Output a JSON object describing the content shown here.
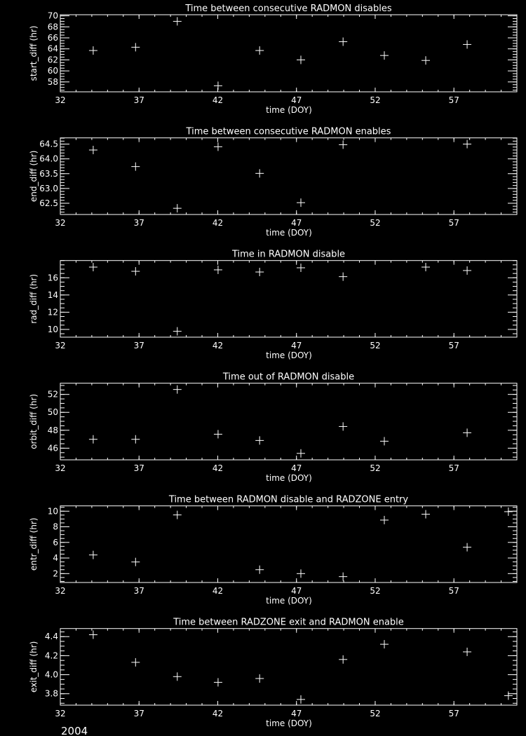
{
  "footer": {
    "year": "2004"
  },
  "colors": {
    "background": "#000000",
    "foreground": "#ffffff"
  },
  "chart_data": [
    {
      "type": "scatter",
      "marker": "plus",
      "title": "Time between consecutive RADMON disables",
      "xlabel": "time (DOY)",
      "ylabel": "start_diff (hr)",
      "xlim": [
        32,
        61
      ],
      "ylim": [
        56.2,
        70.2
      ],
      "xticks": [
        "32",
        "37",
        "42",
        "47",
        "52",
        "57"
      ],
      "x_minor": 1,
      "yticks": [
        "58",
        "60",
        "62",
        "64",
        "66",
        "68",
        "70"
      ],
      "y_minor": 0.5,
      "x": [
        34.09,
        36.78,
        39.43,
        42.02,
        44.66,
        47.28,
        49.96,
        52.58,
        55.21,
        57.84
      ],
      "y": [
        63.7,
        64.3,
        69.0,
        57.3,
        63.7,
        62.0,
        65.3,
        62.8,
        61.9,
        64.8
      ]
    },
    {
      "type": "scatter",
      "marker": "plus",
      "title": "Time between consecutive RADMON enables",
      "xlabel": "time (DOY)",
      "ylabel": "end_diff (hr)",
      "xlim": [
        32,
        61
      ],
      "ylim": [
        62.12,
        64.71
      ],
      "xticks": [
        "32",
        "37",
        "42",
        "47",
        "52",
        "57"
      ],
      "x_minor": 1,
      "yticks": [
        "62.5",
        "63.0",
        "63.5",
        "64.0",
        "64.5"
      ],
      "y_minor": 0.1,
      "x": [
        34.09,
        36.78,
        39.43,
        42.02,
        44.66,
        47.28,
        49.96,
        57.84
      ],
      "y": [
        64.3,
        63.74,
        62.33,
        64.41,
        63.51,
        62.52,
        64.48,
        64.5
      ]
    },
    {
      "type": "scatter",
      "marker": "plus",
      "title": "Time in RADMON disable",
      "xlabel": "time (DOY)",
      "ylabel": "rad_diff (hr)",
      "xlim": [
        32,
        61
      ],
      "ylim": [
        9.1,
        18.0
      ],
      "xticks": [
        "32",
        "37",
        "42",
        "47",
        "52",
        "57"
      ],
      "x_minor": 1,
      "yticks": [
        "10",
        "12",
        "14",
        "16"
      ],
      "y_minor": 0.5,
      "x": [
        34.09,
        36.78,
        39.43,
        42.02,
        44.66,
        47.28,
        49.96,
        55.21,
        57.84
      ],
      "y": [
        17.24,
        16.75,
        9.78,
        16.92,
        16.67,
        17.16,
        16.13,
        17.24,
        16.84
      ]
    },
    {
      "type": "scatter",
      "marker": "plus",
      "title": "Time out of RADMON disable",
      "xlabel": "time (DOY)",
      "ylabel": "orbit_diff (hr)",
      "xlim": [
        32,
        61
      ],
      "ylim": [
        44.7,
        53.25
      ],
      "xticks": [
        "32",
        "37",
        "42",
        "47",
        "52",
        "57"
      ],
      "x_minor": 1,
      "yticks": [
        "46",
        "48",
        "50",
        "52"
      ],
      "y_minor": 0.5,
      "x": [
        34.09,
        36.78,
        39.43,
        42.02,
        44.66,
        47.28,
        49.96,
        52.58,
        57.84
      ],
      "y": [
        46.99,
        46.99,
        52.55,
        47.56,
        46.86,
        45.42,
        48.42,
        46.78,
        47.72
      ]
    },
    {
      "type": "scatter",
      "marker": "plus",
      "title": "Time between RADMON disable and RADZONE entry",
      "xlabel": "time (DOY)",
      "ylabel": "entr_diff (hr)",
      "xlim": [
        32,
        61
      ],
      "ylim": [
        0.86,
        10.68
      ],
      "xticks": [
        "32",
        "37",
        "42",
        "47",
        "52",
        "57"
      ],
      "x_minor": 1,
      "yticks": [
        "2",
        "4",
        "6",
        "8",
        "10"
      ],
      "y_minor": 0.5,
      "x": [
        34.09,
        36.78,
        39.43,
        44.66,
        47.28,
        49.96,
        52.58,
        55.21,
        57.84,
        60.46
      ],
      "y": [
        4.39,
        3.49,
        9.52,
        2.5,
        2.0,
        1.61,
        8.86,
        9.61,
        5.38,
        9.94
      ]
    },
    {
      "type": "scatter",
      "marker": "plus",
      "title": "Time between RADZONE exit and RADMON enable",
      "xlabel": "time (DOY)",
      "ylabel": "exit_diff (hr)",
      "xlim": [
        32,
        61
      ],
      "ylim": [
        3.68,
        4.485
      ],
      "xticks": [
        "32",
        "37",
        "42",
        "47",
        "52",
        "57"
      ],
      "x_minor": 1,
      "yticks": [
        "3.8",
        "4.0",
        "4.2",
        "4.4"
      ],
      "y_minor": 0.05,
      "x": [
        34.09,
        36.78,
        39.43,
        42.02,
        44.66,
        47.28,
        49.96,
        52.58,
        57.84,
        60.46
      ],
      "y": [
        4.42,
        4.13,
        3.98,
        3.92,
        3.96,
        3.74,
        4.16,
        4.32,
        4.24,
        3.78
      ]
    }
  ]
}
